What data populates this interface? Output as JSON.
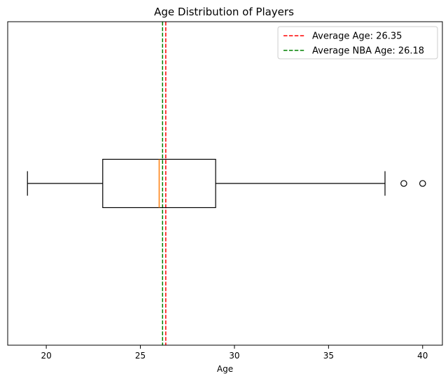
{
  "chart_data": {
    "type": "boxplot",
    "title": "Age Distribution of Players",
    "xlabel": "Age",
    "ylabel": "",
    "xlim": [
      17.95,
      41.05
    ],
    "xticks": [
      20,
      25,
      30,
      35,
      40
    ],
    "xtick_labels": [
      "20",
      "25",
      "30",
      "35",
      "40"
    ],
    "orientation": "horizontal",
    "grid": false,
    "legend_position": "top-right",
    "box": {
      "whisker_low": 19,
      "q1": 23,
      "median": 26,
      "q3": 29,
      "whisker_high": 38,
      "outliers": [
        39,
        40
      ],
      "box_color": "#000000",
      "median_color": "#ff7f0e"
    },
    "reference_lines": [
      {
        "label": "Average Age: 26.35",
        "value": 26.35,
        "color": "#ff0000",
        "style": "dashed"
      },
      {
        "label": "Average NBA Age: 26.18",
        "value": 26.18,
        "color": "#008000",
        "style": "dashed"
      }
    ]
  }
}
